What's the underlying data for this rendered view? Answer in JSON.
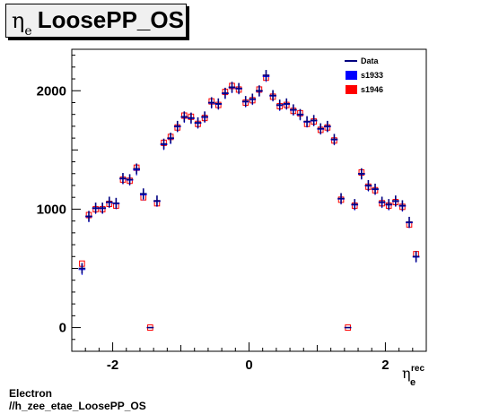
{
  "title": {
    "symbol": "η",
    "subscript": "e",
    "text": "LoosePP_OS"
  },
  "footer": {
    "line1": "Electron",
    "line2": "//h_zee_etae_LoosePP_OS"
  },
  "colors": {
    "data": "#000080",
    "s1933": "#0000ff",
    "s1946": "#ff0000",
    "frame": "#000000",
    "title_bg": "#f0f0f0"
  },
  "chart_data": {
    "type": "scatter",
    "xlabel": "η_e^rec",
    "xlabel_symbol": "η",
    "xlabel_sub": "e",
    "xlabel_sup": "rec",
    "ylabel": "",
    "xlim": [
      -2.6,
      2.6
    ],
    "ylim": [
      -200,
      2350
    ],
    "x_ticks": [
      -2,
      0,
      2
    ],
    "y_ticks": [
      0,
      1000,
      2000
    ],
    "grid": false,
    "legend_position": "top-right",
    "bin_half_width": 0.05,
    "x": [
      -2.45,
      -2.35,
      -2.25,
      -2.15,
      -2.05,
      -1.95,
      -1.85,
      -1.75,
      -1.65,
      -1.55,
      -1.45,
      -1.35,
      -1.25,
      -1.15,
      -1.05,
      -0.95,
      -0.85,
      -0.75,
      -0.65,
      -0.55,
      -0.45,
      -0.35,
      -0.25,
      -0.15,
      -0.05,
      0.05,
      0.15,
      0.25,
      0.35,
      0.45,
      0.55,
      0.65,
      0.75,
      0.85,
      0.95,
      1.05,
      1.15,
      1.25,
      1.35,
      1.45,
      1.55,
      1.65,
      1.75,
      1.85,
      1.95,
      2.05,
      2.15,
      2.25,
      2.35,
      2.45
    ],
    "series": [
      {
        "name": "Data",
        "values": [
          500,
          940,
          1010,
          1010,
          1060,
          1050,
          1260,
          1250,
          1340,
          1130,
          0,
          1070,
          1550,
          1600,
          1700,
          1780,
          1770,
          1730,
          1780,
          1900,
          1890,
          1980,
          2030,
          2020,
          1910,
          1930,
          2000,
          2130,
          1960,
          1880,
          1890,
          1840,
          1800,
          1740,
          1750,
          1680,
          1700,
          1590,
          1090,
          0,
          1040,
          1300,
          1200,
          1170,
          1060,
          1040,
          1070,
          1030,
          890,
          600
        ],
        "marker": "cross",
        "color": "#000080"
      },
      {
        "name": "s1933",
        "values": [
          490,
          935,
          1005,
          1005,
          1055,
          1045,
          1255,
          1245,
          1330,
          1120,
          0,
          1065,
          1545,
          1595,
          1695,
          1775,
          1765,
          1725,
          1775,
          1895,
          1885,
          1975,
          2025,
          2015,
          1905,
          1925,
          1995,
          2120,
          1955,
          1875,
          1885,
          1835,
          1795,
          1735,
          1745,
          1675,
          1695,
          1585,
          1085,
          0,
          1035,
          1295,
          1195,
          1165,
          1055,
          1035,
          1065,
          1025,
          885,
          595
        ],
        "marker": "cross",
        "color": "#0000ff"
      },
      {
        "name": "s1946",
        "values": [
          540,
          950,
          1000,
          1000,
          1045,
          1030,
          1250,
          1240,
          1350,
          1100,
          0,
          1050,
          1560,
          1610,
          1690,
          1790,
          1780,
          1720,
          1770,
          1910,
          1880,
          1990,
          2040,
          2010,
          1900,
          1920,
          2010,
          2110,
          1950,
          1870,
          1880,
          1830,
          1810,
          1720,
          1740,
          1670,
          1690,
          1580,
          1080,
          0,
          1030,
          1310,
          1190,
          1160,
          1050,
          1030,
          1060,
          1020,
          870,
          620
        ],
        "marker": "box",
        "color": "#ff0000"
      }
    ]
  }
}
